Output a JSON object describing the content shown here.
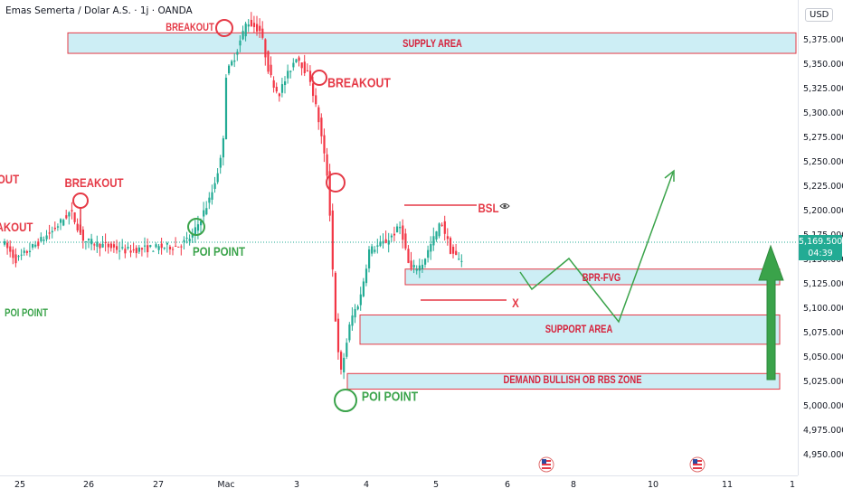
{
  "header": {
    "symbol_title": "Emas Semerta / Dolar A.S. · 1j · OANDA"
  },
  "price_axis": {
    "currency": "USD",
    "current_price": "5,169.500",
    "countdown": "04:39"
  },
  "chart_data": {
    "type": "candlestick",
    "y_ticks": [
      "5,375.000",
      "5,350.000",
      "5,325.000",
      "5,300.000",
      "5,275.000",
      "5,250.000",
      "5,225.000",
      "5,200.000",
      "5,175.000",
      "5,150.000",
      "5,125.000",
      "5,100.000",
      "5,075.000",
      "5,050.000",
      "5,025.000",
      "5,000.000",
      "4,975.000",
      "4,950.000"
    ],
    "x_ticks": [
      "25",
      "26",
      "27",
      "Mac",
      "3",
      "4",
      "5",
      "6",
      "8",
      "10",
      "11",
      "1"
    ],
    "ylim": [
      4937,
      5400
    ],
    "zones": [
      {
        "label": "SUPPLY AREA",
        "low": 5362,
        "high": 5383
      },
      {
        "label": "BPR-FVG",
        "low": 5125,
        "high": 5141
      },
      {
        "label": "SUPPORT AREA",
        "low": 5064,
        "high": 5094
      },
      {
        "label": "DEMAND BULLISH OB RBS ZONE",
        "low": 5018,
        "high": 5034
      }
    ],
    "annotations": {
      "breakout_left_cut": "OUT",
      "breakout_1": "BREAKOUT",
      "breakout_2": "BREAKOUT",
      "breakout_3": "BREAKOUT",
      "akout_cut": "AKOUT",
      "poi_point_1": "POI POINT",
      "poi_point_2": "POI POINT",
      "poi_point_3": "POI POINT",
      "bsl": "BSL",
      "x_mark": "X"
    },
    "colors": {
      "bull": "#22ab94",
      "bear": "#f23645",
      "zone_fill": "#cdeef5",
      "zone_border": "#e53946",
      "annotation_red": "#e53946",
      "annotation_green": "#3aa34a"
    }
  }
}
